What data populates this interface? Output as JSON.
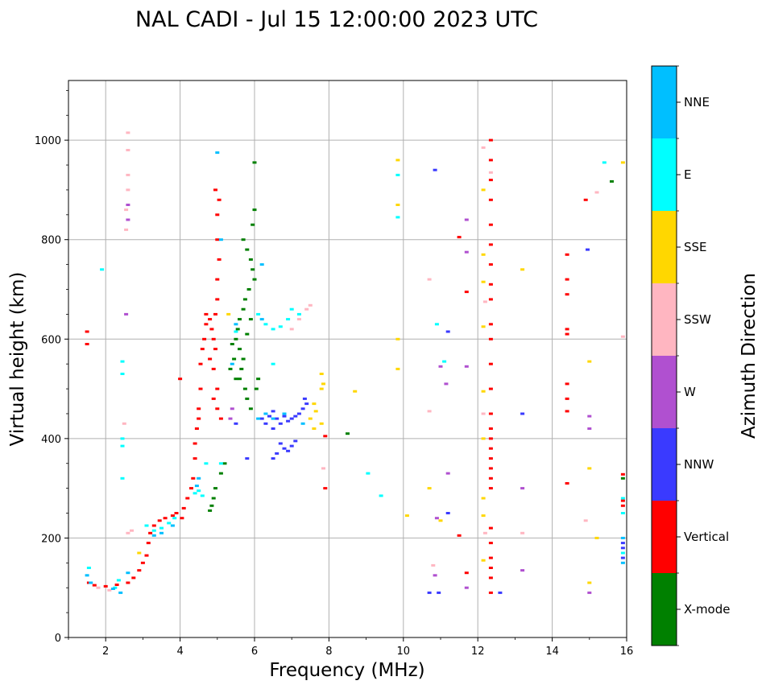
{
  "chart_data": {
    "type": "scatter",
    "title": "NAL CADI - Jul 15 12:00:00 2023 UTC",
    "xlabel": "Frequency (MHz)",
    "ylabel": "Virtual height (km)",
    "xlim": [
      1,
      16
    ],
    "ylim": [
      0,
      1120
    ],
    "xticks": [
      2,
      4,
      6,
      8,
      10,
      12,
      14,
      16
    ],
    "yticks": [
      0,
      200,
      400,
      600,
      800,
      1000
    ],
    "grid": true,
    "colorbar": {
      "label": "Azimuth Direction",
      "categories": [
        "X-mode",
        "Vertical",
        "NNW",
        "W",
        "SSW",
        "SSE",
        "E",
        "NNE"
      ],
      "colors": [
        "#008000",
        "#ff0000",
        "#3a3aff",
        "#b050d0",
        "#ffb6c1",
        "#ffd700",
        "#00ffff",
        "#00bfff"
      ]
    },
    "series": [
      {
        "name": "X-mode",
        "points": [
          [
            5.7,
            800
          ],
          [
            5.8,
            780
          ],
          [
            5.9,
            760
          ],
          [
            5.95,
            740
          ],
          [
            6.0,
            720
          ],
          [
            5.85,
            700
          ],
          [
            5.75,
            680
          ],
          [
            5.7,
            660
          ],
          [
            5.6,
            640
          ],
          [
            5.55,
            620
          ],
          [
            5.5,
            600
          ],
          [
            5.6,
            580
          ],
          [
            5.7,
            560
          ],
          [
            5.65,
            540
          ],
          [
            5.6,
            520
          ],
          [
            5.75,
            500
          ],
          [
            5.8,
            480
          ],
          [
            5.9,
            460
          ],
          [
            6.05,
            500
          ],
          [
            6.1,
            520
          ],
          [
            6.0,
            860
          ],
          [
            5.95,
            830
          ],
          [
            6.0,
            955
          ],
          [
            5.9,
            640
          ],
          [
            5.8,
            610
          ],
          [
            5.4,
            590
          ],
          [
            5.45,
            560
          ],
          [
            5.35,
            540
          ],
          [
            5.5,
            520
          ],
          [
            5.2,
            350
          ],
          [
            5.1,
            330
          ],
          [
            4.95,
            300
          ],
          [
            4.9,
            280
          ],
          [
            4.85,
            265
          ],
          [
            4.8,
            255
          ],
          [
            8.5,
            410
          ],
          [
            15.6,
            917
          ],
          [
            15.9,
            320
          ]
        ]
      },
      {
        "name": "Vertical",
        "points": [
          [
            1.5,
            615
          ],
          [
            1.5,
            590
          ],
          [
            1.55,
            110
          ],
          [
            1.7,
            105
          ],
          [
            2.0,
            103
          ],
          [
            2.3,
            106
          ],
          [
            2.6,
            110
          ],
          [
            2.75,
            120
          ],
          [
            2.9,
            135
          ],
          [
            3.0,
            150
          ],
          [
            3.1,
            165
          ],
          [
            3.15,
            190
          ],
          [
            3.2,
            210
          ],
          [
            3.3,
            225
          ],
          [
            3.45,
            235
          ],
          [
            3.6,
            240
          ],
          [
            3.8,
            245
          ],
          [
            3.9,
            250
          ],
          [
            4.05,
            240
          ],
          [
            4.1,
            260
          ],
          [
            4.2,
            280
          ],
          [
            4.3,
            300
          ],
          [
            4.35,
            320
          ],
          [
            4.4,
            360
          ],
          [
            4.4,
            390
          ],
          [
            4.45,
            420
          ],
          [
            4.5,
            440
          ],
          [
            4.5,
            460
          ],
          [
            4.55,
            500
          ],
          [
            4.55,
            550
          ],
          [
            4.6,
            580
          ],
          [
            4.65,
            600
          ],
          [
            4.7,
            630
          ],
          [
            4.7,
            650
          ],
          [
            4.8,
            640
          ],
          [
            4.85,
            620
          ],
          [
            4.9,
            600
          ],
          [
            4.95,
            650
          ],
          [
            5.0,
            680
          ],
          [
            5.0,
            720
          ],
          [
            5.05,
            760
          ],
          [
            5.0,
            800
          ],
          [
            5.0,
            850
          ],
          [
            5.05,
            880
          ],
          [
            4.95,
            900
          ],
          [
            5.0,
            500
          ],
          [
            4.9,
            480
          ],
          [
            5.0,
            460
          ],
          [
            5.1,
            440
          ],
          [
            4.8,
            560
          ],
          [
            4.9,
            540
          ],
          [
            4.95,
            580
          ],
          [
            4.0,
            520
          ],
          [
            7.9,
            405
          ],
          [
            7.9,
            300
          ],
          [
            12.35,
            1000
          ],
          [
            12.35,
            960
          ],
          [
            12.35,
            920
          ],
          [
            12.35,
            880
          ],
          [
            12.35,
            830
          ],
          [
            12.35,
            790
          ],
          [
            12.35,
            750
          ],
          [
            12.35,
            710
          ],
          [
            12.35,
            680
          ],
          [
            12.35,
            630
          ],
          [
            12.35,
            600
          ],
          [
            12.35,
            550
          ],
          [
            12.35,
            500
          ],
          [
            12.35,
            450
          ],
          [
            12.35,
            420
          ],
          [
            12.35,
            400
          ],
          [
            12.35,
            380
          ],
          [
            12.35,
            360
          ],
          [
            12.35,
            340
          ],
          [
            12.35,
            320
          ],
          [
            12.35,
            300
          ],
          [
            12.35,
            220
          ],
          [
            12.35,
            190
          ],
          [
            12.35,
            160
          ],
          [
            12.35,
            140
          ],
          [
            12.35,
            120
          ],
          [
            12.35,
            90
          ],
          [
            11.5,
            805
          ],
          [
            11.7,
            695
          ],
          [
            11.7,
            130
          ],
          [
            11.5,
            205
          ],
          [
            14.4,
            770
          ],
          [
            14.4,
            720
          ],
          [
            14.4,
            690
          ],
          [
            14.4,
            620
          ],
          [
            14.4,
            610
          ],
          [
            14.4,
            510
          ],
          [
            14.4,
            480
          ],
          [
            14.4,
            455
          ],
          [
            14.4,
            310
          ],
          [
            14.9,
            880
          ],
          [
            15.9,
            328
          ],
          [
            15.9,
            275
          ],
          [
            15.9,
            265
          ]
        ]
      },
      {
        "name": "NNW",
        "points": [
          [
            6.2,
            440
          ],
          [
            6.3,
            430
          ],
          [
            6.4,
            445
          ],
          [
            6.5,
            455
          ],
          [
            6.6,
            440
          ],
          [
            6.7,
            430
          ],
          [
            6.8,
            445
          ],
          [
            6.9,
            435
          ],
          [
            7.0,
            440
          ],
          [
            7.1,
            445
          ],
          [
            7.2,
            450
          ],
          [
            7.3,
            460
          ],
          [
            7.35,
            480
          ],
          [
            7.4,
            470
          ],
          [
            6.5,
            420
          ],
          [
            6.7,
            390
          ],
          [
            6.8,
            380
          ],
          [
            6.9,
            375
          ],
          [
            7.0,
            385
          ],
          [
            7.1,
            395
          ],
          [
            6.6,
            370
          ],
          [
            6.5,
            360
          ],
          [
            5.5,
            430
          ],
          [
            5.8,
            360
          ],
          [
            10.85,
            940
          ],
          [
            10.7,
            90
          ],
          [
            10.95,
            90
          ],
          [
            11.2,
            615
          ],
          [
            11.2,
            250
          ],
          [
            12.6,
            90
          ],
          [
            13.2,
            450
          ],
          [
            14.95,
            780
          ],
          [
            15.9,
            190
          ],
          [
            15.9,
            180
          ],
          [
            15.9,
            160
          ]
        ]
      },
      {
        "name": "W",
        "points": [
          [
            2.6,
            870
          ],
          [
            2.6,
            840
          ],
          [
            2.55,
            650
          ],
          [
            5.4,
            460
          ],
          [
            5.35,
            440
          ],
          [
            11.0,
            545
          ],
          [
            11.15,
            510
          ],
          [
            11.2,
            330
          ],
          [
            10.9,
            240
          ],
          [
            10.85,
            125
          ],
          [
            11.7,
            840
          ],
          [
            11.7,
            775
          ],
          [
            11.7,
            545
          ],
          [
            11.7,
            100
          ],
          [
            13.2,
            300
          ],
          [
            13.2,
            135
          ],
          [
            15.0,
            445
          ],
          [
            15.0,
            420
          ],
          [
            15.0,
            90
          ]
        ]
      },
      {
        "name": "SSW",
        "points": [
          [
            2.6,
            1015
          ],
          [
            2.6,
            980
          ],
          [
            2.6,
            930
          ],
          [
            2.6,
            900
          ],
          [
            2.55,
            860
          ],
          [
            2.55,
            820
          ],
          [
            2.5,
            430
          ],
          [
            2.6,
            210
          ],
          [
            2.7,
            215
          ],
          [
            1.8,
            100
          ],
          [
            2.1,
            95
          ],
          [
            7.0,
            620
          ],
          [
            7.2,
            640
          ],
          [
            7.4,
            660
          ],
          [
            7.5,
            668
          ],
          [
            7.85,
            340
          ],
          [
            10.7,
            455
          ],
          [
            10.7,
            720
          ],
          [
            10.8,
            145
          ],
          [
            12.15,
            985
          ],
          [
            12.35,
            935
          ],
          [
            12.2,
            675
          ],
          [
            12.15,
            450
          ],
          [
            15.2,
            895
          ],
          [
            15.9,
            605
          ],
          [
            13.2,
            210
          ],
          [
            14.9,
            235
          ],
          [
            12.2,
            210
          ]
        ]
      },
      {
        "name": "SSE",
        "points": [
          [
            7.5,
            440
          ],
          [
            7.6,
            470
          ],
          [
            7.65,
            455
          ],
          [
            7.8,
            430
          ],
          [
            7.8,
            500
          ],
          [
            7.8,
            530
          ],
          [
            7.85,
            510
          ],
          [
            7.6,
            420
          ],
          [
            8.7,
            495
          ],
          [
            9.85,
            960
          ],
          [
            9.85,
            870
          ],
          [
            9.85,
            600
          ],
          [
            9.85,
            540
          ],
          [
            10.1,
            245
          ],
          [
            10.7,
            300
          ],
          [
            11.0,
            235
          ],
          [
            12.15,
            900
          ],
          [
            12.15,
            770
          ],
          [
            12.15,
            715
          ],
          [
            12.15,
            625
          ],
          [
            12.15,
            495
          ],
          [
            12.15,
            400
          ],
          [
            12.15,
            280
          ],
          [
            12.15,
            245
          ],
          [
            12.15,
            155
          ],
          [
            13.2,
            740
          ],
          [
            15.0,
            555
          ],
          [
            15.0,
            340
          ],
          [
            15.0,
            110
          ],
          [
            15.2,
            200
          ],
          [
            15.9,
            955
          ],
          [
            5.3,
            650
          ],
          [
            2.9,
            170
          ]
        ]
      },
      {
        "name": "E",
        "points": [
          [
            1.55,
            140
          ],
          [
            1.9,
            740
          ],
          [
            2.45,
            555
          ],
          [
            2.45,
            530
          ],
          [
            2.45,
            400
          ],
          [
            2.45,
            385
          ],
          [
            2.45,
            320
          ],
          [
            2.25,
            100
          ],
          [
            2.35,
            115
          ],
          [
            3.1,
            225
          ],
          [
            3.3,
            215
          ],
          [
            3.5,
            220
          ],
          [
            3.7,
            230
          ],
          [
            3.85,
            240
          ],
          [
            4.4,
            290
          ],
          [
            4.5,
            295
          ],
          [
            4.6,
            285
          ],
          [
            4.7,
            350
          ],
          [
            5.1,
            350
          ],
          [
            5.5,
            615
          ],
          [
            6.1,
            650
          ],
          [
            6.3,
            630
          ],
          [
            6.5,
            620
          ],
          [
            6.7,
            625
          ],
          [
            6.9,
            640
          ],
          [
            7.0,
            660
          ],
          [
            7.2,
            650
          ],
          [
            6.5,
            550
          ],
          [
            9.85,
            930
          ],
          [
            9.85,
            845
          ],
          [
            9.05,
            330
          ],
          [
            9.4,
            285
          ],
          [
            10.9,
            630
          ],
          [
            11.1,
            555
          ],
          [
            15.4,
            955
          ],
          [
            15.9,
            280
          ],
          [
            15.9,
            250
          ],
          [
            15.9,
            170
          ]
        ]
      },
      {
        "name": "NNE",
        "points": [
          [
            1.5,
            125
          ],
          [
            1.6,
            110
          ],
          [
            2.2,
            98
          ],
          [
            2.4,
            90
          ],
          [
            2.6,
            130
          ],
          [
            3.3,
            205
          ],
          [
            3.5,
            210
          ],
          [
            3.8,
            225
          ],
          [
            4.45,
            305
          ],
          [
            4.5,
            320
          ],
          [
            5.0,
            975
          ],
          [
            6.2,
            750
          ],
          [
            6.2,
            640
          ],
          [
            6.1,
            440
          ],
          [
            6.3,
            450
          ],
          [
            6.5,
            440
          ],
          [
            6.8,
            450
          ],
          [
            7.3,
            430
          ],
          [
            5.1,
            800
          ],
          [
            5.5,
            630
          ],
          [
            5.4,
            550
          ],
          [
            15.9,
            200
          ],
          [
            15.9,
            150
          ]
        ]
      }
    ]
  }
}
